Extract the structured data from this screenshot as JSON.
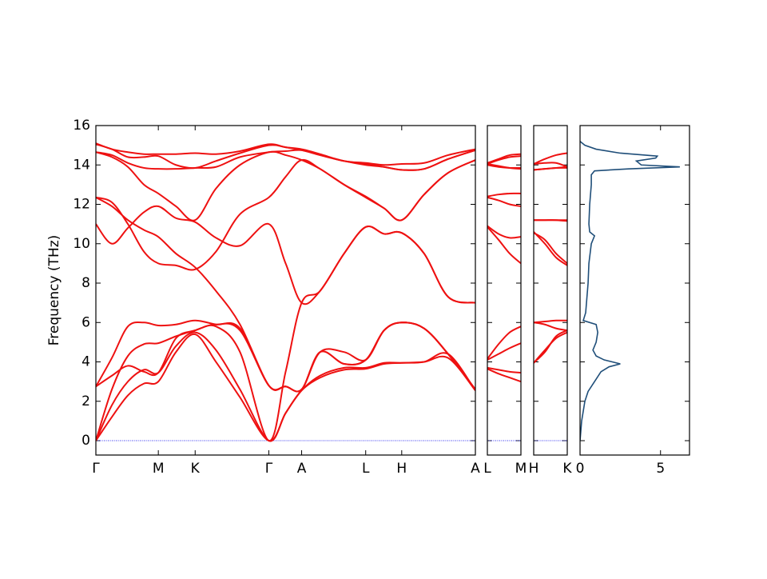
{
  "chart_data": [
    {
      "type": "line",
      "ylabel": "Frequency (THz)",
      "color": "#ee1111",
      "xlim": [
        0,
        4.74
      ],
      "ylim": [
        -0.73,
        16
      ],
      "yticks": [
        0,
        2,
        4,
        6,
        8,
        10,
        12,
        14,
        16
      ],
      "hline": {
        "y": 0,
        "color": "#2222ee"
      },
      "xticks": [
        {
          "value": 0,
          "label": "Γ"
        },
        {
          "value": 0.78,
          "label": "M"
        },
        {
          "value": 1.24,
          "label": "K"
        },
        {
          "value": 2.16,
          "label": "Γ"
        },
        {
          "value": 2.57,
          "label": "A"
        },
        {
          "value": 3.37,
          "label": "L"
        },
        {
          "value": 3.82,
          "label": "H"
        },
        {
          "value": 4.74,
          "label": "A"
        }
      ],
      "x": [
        0,
        0.2,
        0.4,
        0.6,
        0.78,
        1.0,
        1.24,
        1.5,
        1.8,
        2.16,
        2.37,
        2.57,
        2.8,
        3.1,
        3.37,
        3.6,
        3.82,
        4.1,
        4.4,
        4.74
      ],
      "series": [
        {
          "values": [
            0,
            1.2,
            2.3,
            2.9,
            3.0,
            4.5,
            5.4,
            4.0,
            2.2,
            0,
            1.4,
            2.55,
            3.2,
            3.6,
            3.65,
            3.9,
            3.95,
            4.0,
            4.4,
            2.55
          ]
        },
        {
          "values": [
            0,
            1.8,
            3.0,
            3.6,
            3.45,
            4.8,
            5.5,
            4.6,
            2.6,
            0,
            1.4,
            2.55,
            3.3,
            3.7,
            3.7,
            3.95,
            3.95,
            4.0,
            4.2,
            2.55
          ]
        },
        {
          "values": [
            0,
            2.6,
            4.3,
            4.9,
            4.95,
            5.3,
            5.6,
            5.8,
            4.5,
            0,
            3.5,
            7.0,
            7.6,
            9.5,
            10.85,
            10.5,
            10.55,
            9.5,
            7.3,
            7.0
          ]
        },
        {
          "values": [
            2.75,
            3.3,
            3.8,
            3.5,
            3.45,
            5.2,
            5.6,
            5.9,
            5.6,
            2.8,
            2.75,
            2.6,
            4.5,
            3.9,
            4.1,
            5.6,
            6.0,
            5.7,
            4.4,
            2.6
          ]
        },
        {
          "values": [
            2.75,
            4.2,
            5.8,
            6.0,
            5.85,
            5.9,
            6.1,
            5.9,
            5.7,
            2.8,
            2.75,
            2.6,
            4.5,
            3.9,
            4.1,
            5.6,
            6.0,
            5.7,
            4.4,
            2.6
          ]
        },
        {
          "values": [
            11.0,
            10.0,
            10.8,
            11.6,
            11.9,
            11.3,
            11.1,
            10.3,
            9.9,
            11.0,
            9.0,
            7.0,
            7.6,
            9.5,
            10.85,
            10.5,
            10.55,
            9.5,
            7.3,
            7.0
          ]
        },
        {
          "values": [
            12.35,
            11.9,
            11.2,
            10.7,
            10.35,
            9.5,
            8.8,
            7.6,
            5.9,
            2.8,
            2.75,
            2.6,
            4.5,
            4.5,
            4.1,
            5.6,
            6.0,
            5.7,
            4.4,
            2.6
          ]
        },
        {
          "values": [
            12.35,
            12.1,
            11.0,
            9.6,
            9.0,
            8.9,
            8.7,
            9.6,
            11.5,
            12.35,
            13.4,
            14.25,
            13.8,
            13.0,
            12.4,
            11.8,
            11.2,
            12.5,
            13.6,
            14.25
          ]
        },
        {
          "values": [
            14.65,
            14.4,
            13.9,
            13.0,
            12.55,
            11.9,
            11.2,
            12.8,
            14.0,
            14.65,
            14.5,
            14.25,
            13.8,
            13.0,
            12.35,
            11.8,
            11.2,
            12.5,
            13.6,
            14.25
          ]
        },
        {
          "values": [
            14.65,
            14.5,
            14.1,
            13.85,
            13.8,
            13.8,
            13.85,
            13.9,
            14.4,
            14.65,
            14.7,
            14.75,
            14.5,
            14.2,
            14.05,
            13.9,
            13.75,
            13.8,
            14.3,
            14.75
          ]
        },
        {
          "values": [
            15.05,
            14.8,
            14.4,
            14.4,
            14.45,
            14.0,
            13.85,
            14.2,
            14.6,
            15.0,
            14.9,
            14.75,
            14.5,
            14.2,
            14.0,
            13.9,
            13.75,
            13.8,
            14.3,
            14.75
          ]
        },
        {
          "values": [
            15.1,
            14.8,
            14.65,
            14.55,
            14.55,
            14.55,
            14.6,
            14.55,
            14.7,
            15.05,
            14.9,
            14.8,
            14.55,
            14.2,
            14.1,
            14.0,
            14.05,
            14.1,
            14.5,
            14.8
          ]
        }
      ]
    },
    {
      "type": "line",
      "color": "#ee1111",
      "xlim": [
        0,
        0.42
      ],
      "ylim": [
        -0.73,
        16
      ],
      "hline": {
        "y": 0,
        "color": "#2222ee"
      },
      "xticks": [
        {
          "value": 0,
          "label": "L"
        },
        {
          "value": 0.42,
          "label": "M"
        }
      ],
      "x": [
        0,
        0.14,
        0.28,
        0.42
      ],
      "series": [
        {
          "values": [
            3.65,
            3.4,
            3.2,
            3.0
          ]
        },
        {
          "values": [
            3.7,
            3.6,
            3.5,
            3.45
          ]
        },
        {
          "values": [
            4.1,
            4.4,
            4.7,
            4.95
          ]
        },
        {
          "values": [
            4.15,
            4.9,
            5.5,
            5.8
          ]
        },
        {
          "values": [
            10.9,
            10.5,
            10.3,
            10.35
          ]
        },
        {
          "values": [
            10.85,
            10.2,
            9.5,
            9.0
          ]
        },
        {
          "values": [
            12.4,
            12.5,
            12.55,
            12.55
          ]
        },
        {
          "values": [
            12.35,
            12.2,
            12.0,
            11.9
          ]
        },
        {
          "values": [
            14.0,
            13.9,
            13.85,
            13.85
          ]
        },
        {
          "values": [
            14.05,
            13.95,
            13.85,
            13.8
          ]
        },
        {
          "values": [
            14.05,
            14.25,
            14.4,
            14.45
          ]
        },
        {
          "values": [
            14.1,
            14.3,
            14.5,
            14.55
          ]
        }
      ]
    },
    {
      "type": "line",
      "color": "#ee1111",
      "xlim": [
        0,
        0.42
      ],
      "ylim": [
        -0.73,
        16
      ],
      "hline": {
        "y": 0,
        "color": "#2222ee"
      },
      "xticks": [
        {
          "value": 0,
          "label": "H"
        },
        {
          "value": 0.42,
          "label": "K"
        }
      ],
      "x": [
        0,
        0.14,
        0.28,
        0.42
      ],
      "series": [
        {
          "values": [
            3.95,
            4.6,
            5.2,
            5.5
          ]
        },
        {
          "values": [
            3.95,
            4.5,
            5.3,
            5.6
          ]
        },
        {
          "values": [
            6.0,
            6.05,
            6.1,
            6.1
          ]
        },
        {
          "values": [
            6.0,
            5.9,
            5.7,
            5.6
          ]
        },
        {
          "values": [
            10.55,
            10.2,
            9.5,
            9.0
          ]
        },
        {
          "values": [
            10.6,
            10.0,
            9.3,
            8.9
          ]
        },
        {
          "values": [
            11.2,
            11.2,
            11.2,
            11.15
          ]
        },
        {
          "values": [
            11.2,
            11.2,
            11.2,
            11.2
          ]
        },
        {
          "values": [
            13.75,
            13.8,
            13.85,
            13.85
          ]
        },
        {
          "values": [
            13.75,
            13.8,
            13.85,
            13.9
          ]
        },
        {
          "values": [
            14.05,
            14.1,
            14.1,
            13.9
          ]
        },
        {
          "values": [
            14.05,
            14.3,
            14.5,
            14.6
          ]
        }
      ]
    },
    {
      "type": "dos",
      "color": "#1f4e79",
      "xlim": [
        0,
        6.8
      ],
      "ylim": [
        -0.73,
        16
      ],
      "xticks": [
        0,
        5
      ],
      "frequencies": [
        0,
        0.5,
        1,
        1.5,
        2,
        2.5,
        3,
        3.5,
        3.75,
        3.9,
        4.1,
        4.3,
        4.6,
        5,
        5.5,
        5.9,
        6.1,
        6.5,
        7,
        8,
        9,
        10,
        10.4,
        10.6,
        11,
        12,
        13,
        13.5,
        13.7,
        13.8,
        13.9,
        14.0,
        14.2,
        14.35,
        14.45,
        14.6,
        14.8,
        15.0,
        15.2
      ],
      "values": [
        0,
        0.05,
        0.1,
        0.2,
        0.3,
        0.5,
        0.9,
        1.3,
        1.8,
        2.5,
        1.5,
        1.0,
        0.8,
        1.0,
        1.1,
        1.0,
        0.2,
        0.35,
        0.4,
        0.5,
        0.55,
        0.7,
        0.9,
        0.6,
        0.55,
        0.6,
        0.7,
        0.7,
        0.9,
        3.0,
        6.2,
        3.8,
        3.5,
        4.7,
        4.8,
        2.5,
        1.0,
        0.3,
        0
      ]
    }
  ]
}
